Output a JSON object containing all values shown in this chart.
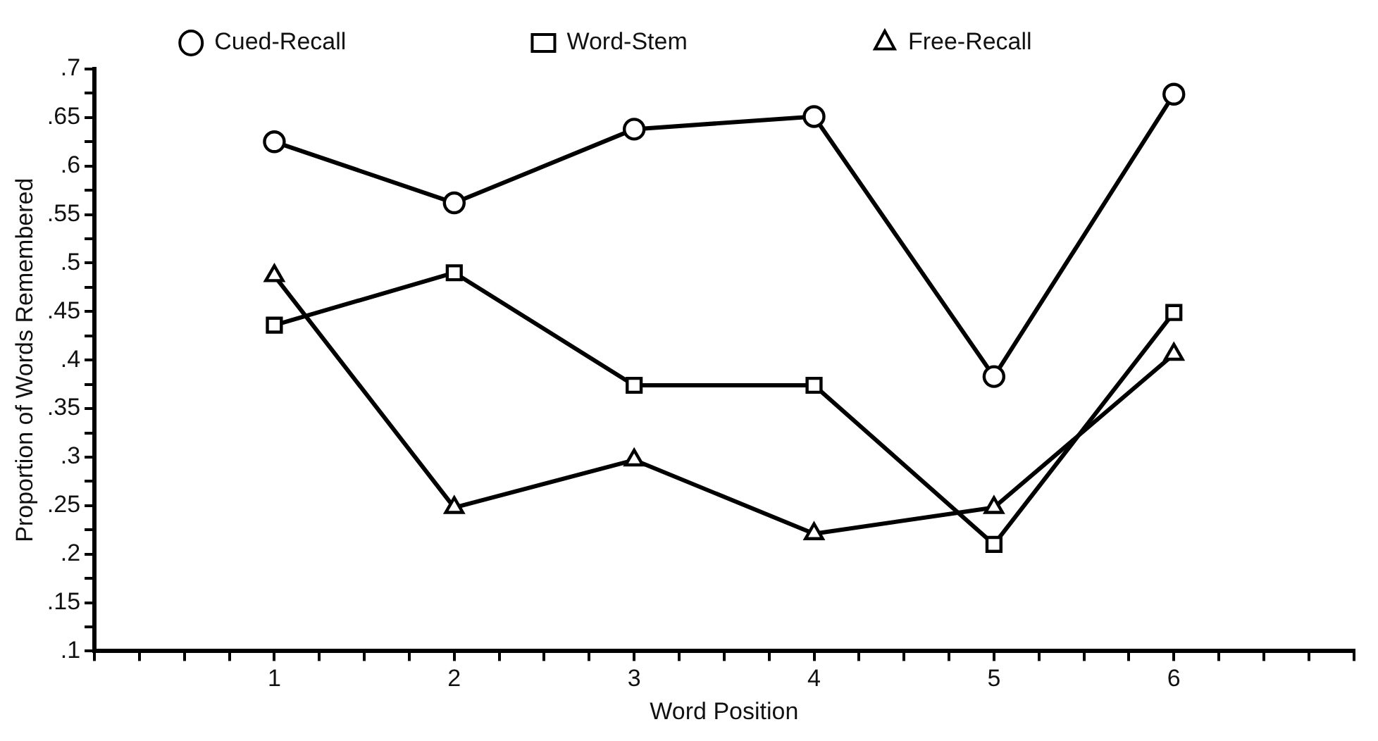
{
  "chart_data": {
    "type": "line",
    "xlabel": "Word Position",
    "ylabel": "Proportion of Words Remembered",
    "x": [
      1,
      2,
      3,
      4,
      5,
      6
    ],
    "series": [
      {
        "name": "Cued-Recall",
        "color": "#000000",
        "marker": "circle",
        "values": [
          0.625,
          0.562,
          0.638,
          0.651,
          0.383,
          0.674
        ]
      },
      {
        "name": "Word-Stem",
        "color": "#000000",
        "marker": "square",
        "values": [
          0.436,
          0.49,
          0.374,
          0.374,
          0.21,
          0.449
        ]
      },
      {
        "name": "Free-Recall",
        "color": "#000000",
        "marker": "triangle",
        "values": [
          0.487,
          0.248,
          0.297,
          0.221,
          0.248,
          0.406
        ]
      }
    ],
    "xlim": [
      0,
      7
    ],
    "xticks": [
      {
        "value": 0,
        "label": null
      },
      {
        "value": 0.25,
        "label": null
      },
      {
        "value": 0.5,
        "label": null
      },
      {
        "value": 0.75,
        "label": null
      },
      1,
      {
        "value": 1.25,
        "label": null
      },
      {
        "value": 1.5,
        "label": null
      },
      {
        "value": 1.75,
        "label": null
      },
      2,
      {
        "value": 2.25,
        "label": null
      },
      {
        "value": 2.5,
        "label": null
      },
      {
        "value": 2.75,
        "label": null
      },
      3,
      {
        "value": 3.25,
        "label": null
      },
      {
        "value": 3.5,
        "label": null
      },
      {
        "value": 3.75,
        "label": null
      },
      4,
      {
        "value": 4.25,
        "label": null
      },
      {
        "value": 4.5,
        "label": null
      },
      {
        "value": 4.75,
        "label": null
      },
      5,
      {
        "value": 5.25,
        "label": null
      },
      {
        "value": 5.5,
        "label": null
      },
      {
        "value": 5.75,
        "label": null
      },
      6,
      {
        "value": 6.25,
        "label": null
      },
      {
        "value": 6.5,
        "label": null
      },
      {
        "value": 6.75,
        "label": null
      },
      {
        "value": 7,
        "label": null
      }
    ],
    "ylim": [
      0.1,
      0.7
    ],
    "yticks": [
      {
        "value": 0.1,
        "label": ".1"
      },
      {
        "value": 0.125,
        "label": null
      },
      {
        "value": 0.15,
        "label": ".15"
      },
      {
        "value": 0.175,
        "label": null
      },
      {
        "value": 0.2,
        "label": ".2"
      },
      {
        "value": 0.225,
        "label": null
      },
      {
        "value": 0.25,
        "label": ".25"
      },
      {
        "value": 0.275,
        "label": null
      },
      {
        "value": 0.3,
        "label": ".3"
      },
      {
        "value": 0.325,
        "label": null
      },
      {
        "value": 0.35,
        "label": ".35"
      },
      {
        "value": 0.375,
        "label": null
      },
      {
        "value": 0.4,
        "label": ".4"
      },
      {
        "value": 0.425,
        "label": null
      },
      {
        "value": 0.45,
        "label": ".45"
      },
      {
        "value": 0.475,
        "label": null
      },
      {
        "value": 0.5,
        "label": ".5"
      },
      {
        "value": 0.525,
        "label": null
      },
      {
        "value": 0.55,
        "label": ".55"
      },
      {
        "value": 0.575,
        "label": null
      },
      {
        "value": 0.6,
        "label": ".6"
      },
      {
        "value": 0.625,
        "label": null
      },
      {
        "value": 0.65,
        "label": ".65"
      },
      {
        "value": 0.675,
        "label": null
      },
      {
        "value": 0.7,
        "label": ".7"
      }
    ],
    "grid": false,
    "legend": "top",
    "line_style": "solid"
  }
}
